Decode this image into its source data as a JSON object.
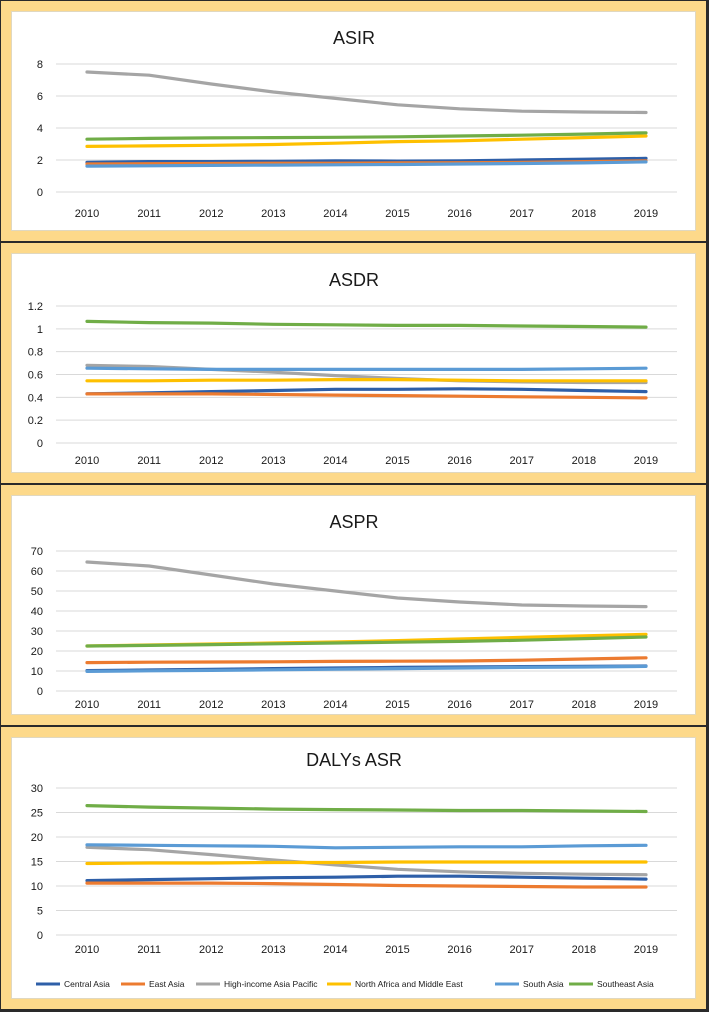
{
  "series_meta": [
    {
      "name": "Central Asia",
      "color": "#2e5fa8"
    },
    {
      "name": "East Asia",
      "color": "#ec7b30"
    },
    {
      "name": "High-income Asia Pacific",
      "color": "#a5a5a5"
    },
    {
      "name": "North Africa and Middle East",
      "color": "#fec000"
    },
    {
      "name": "South Asia",
      "color": "#5b9bd5"
    },
    {
      "name": "Southeast Asia",
      "color": "#70ad47"
    }
  ],
  "chart_data": [
    {
      "type": "line",
      "title": "ASIR",
      "x": [
        "2010",
        "2011",
        "2012",
        "2013",
        "2014",
        "2015",
        "2016",
        "2017",
        "2018",
        "2019"
      ],
      "ylim": [
        0,
        8
      ],
      "yticks": [
        "0",
        "2",
        "4",
        "6",
        "8"
      ],
      "grid": true,
      "legend": "none",
      "series": [
        {
          "name": "Central Asia",
          "values": [
            1.85,
            1.9,
            1.9,
            1.92,
            1.95,
            1.93,
            1.95,
            2.0,
            2.05,
            2.1
          ]
        },
        {
          "name": "East Asia",
          "values": [
            1.75,
            1.77,
            1.78,
            1.8,
            1.8,
            1.82,
            1.83,
            1.85,
            1.9,
            1.95
          ]
        },
        {
          "name": "High-income Asia Pacific",
          "values": [
            7.5,
            7.3,
            6.75,
            6.25,
            5.85,
            5.45,
            5.2,
            5.05,
            5.0,
            4.97
          ]
        },
        {
          "name": "North Africa and Middle East",
          "values": [
            2.85,
            2.88,
            2.92,
            2.97,
            3.05,
            3.15,
            3.2,
            3.3,
            3.4,
            3.5
          ]
        },
        {
          "name": "South Asia",
          "values": [
            1.62,
            1.64,
            1.66,
            1.68,
            1.7,
            1.72,
            1.75,
            1.78,
            1.82,
            1.88
          ]
        },
        {
          "name": "Southeast Asia",
          "values": [
            3.3,
            3.35,
            3.38,
            3.4,
            3.42,
            3.45,
            3.5,
            3.55,
            3.62,
            3.7
          ]
        }
      ]
    },
    {
      "type": "line",
      "title": "ASDR",
      "x": [
        "2010",
        "2011",
        "2012",
        "2013",
        "2014",
        "2015",
        "2016",
        "2017",
        "2018",
        "2019"
      ],
      "ylim": [
        0,
        1.2
      ],
      "yticks": [
        "0",
        "0.2",
        "0.4",
        "0.6",
        "0.8",
        "1",
        "1.2"
      ],
      "grid": true,
      "legend": "none",
      "series": [
        {
          "name": "Central Asia",
          "values": [
            0.43,
            0.44,
            0.45,
            0.46,
            0.47,
            0.47,
            0.475,
            0.47,
            0.46,
            0.45
          ]
        },
        {
          "name": "East Asia",
          "values": [
            0.43,
            0.43,
            0.43,
            0.425,
            0.42,
            0.415,
            0.41,
            0.405,
            0.4,
            0.395
          ]
        },
        {
          "name": "High-income Asia Pacific",
          "values": [
            0.68,
            0.67,
            0.645,
            0.62,
            0.59,
            0.565,
            0.545,
            0.535,
            0.53,
            0.53
          ]
        },
        {
          "name": "North Africa and Middle East",
          "values": [
            0.545,
            0.545,
            0.55,
            0.55,
            0.555,
            0.555,
            0.55,
            0.545,
            0.545,
            0.545
          ]
        },
        {
          "name": "South Asia",
          "values": [
            0.655,
            0.65,
            0.645,
            0.645,
            0.645,
            0.645,
            0.645,
            0.645,
            0.65,
            0.655
          ]
        },
        {
          "name": "Southeast Asia",
          "values": [
            1.065,
            1.055,
            1.05,
            1.04,
            1.035,
            1.03,
            1.03,
            1.025,
            1.02,
            1.015
          ]
        }
      ]
    },
    {
      "type": "line",
      "title": "ASPR",
      "x": [
        "2010",
        "2011",
        "2012",
        "2013",
        "2014",
        "2015",
        "2016",
        "2017",
        "2018",
        "2019"
      ],
      "ylim": [
        0,
        70
      ],
      "yticks": [
        "0",
        "10",
        "20",
        "30",
        "40",
        "50",
        "60",
        "70"
      ],
      "grid": true,
      "legend": "none",
      "series": [
        {
          "name": "Central Asia",
          "values": [
            10.2,
            10.5,
            10.8,
            11.2,
            11.5,
            11.8,
            12.0,
            12.2,
            12.3,
            12.5
          ]
        },
        {
          "name": "East Asia",
          "values": [
            14.2,
            14.4,
            14.5,
            14.6,
            14.8,
            14.9,
            15.0,
            15.4,
            16.0,
            16.6
          ]
        },
        {
          "name": "High-income Asia Pacific",
          "values": [
            64.5,
            62.5,
            58.0,
            53.5,
            50.0,
            46.5,
            44.5,
            43.0,
            42.5,
            42.2
          ]
        },
        {
          "name": "North Africa and Middle East",
          "values": [
            22.5,
            23.0,
            23.5,
            24.0,
            24.5,
            25.2,
            26.0,
            26.8,
            27.6,
            28.3
          ]
        },
        {
          "name": "South Asia",
          "values": [
            9.8,
            10.1,
            10.3,
            10.6,
            10.9,
            11.2,
            11.5,
            11.8,
            12.0,
            12.3
          ]
        },
        {
          "name": "Southeast Asia",
          "values": [
            22.5,
            22.8,
            23.2,
            23.6,
            24.0,
            24.4,
            24.8,
            25.4,
            26.2,
            27.0
          ]
        }
      ]
    },
    {
      "type": "line",
      "title": "DALYs ASR",
      "x": [
        "2010",
        "2011",
        "2012",
        "2013",
        "2014",
        "2015",
        "2016",
        "2017",
        "2018",
        "2019"
      ],
      "ylim": [
        0,
        30
      ],
      "yticks": [
        "0",
        "5",
        "10",
        "15",
        "20",
        "25",
        "30"
      ],
      "grid": true,
      "legend": "bottom",
      "series": [
        {
          "name": "Central Asia",
          "values": [
            11.1,
            11.3,
            11.5,
            11.7,
            11.8,
            12.0,
            12.0,
            11.8,
            11.6,
            11.4
          ]
        },
        {
          "name": "East Asia",
          "values": [
            10.6,
            10.6,
            10.6,
            10.5,
            10.3,
            10.1,
            10.0,
            9.9,
            9.8,
            9.8
          ]
        },
        {
          "name": "High-income Asia Pacific",
          "values": [
            17.9,
            17.4,
            16.4,
            15.3,
            14.3,
            13.4,
            12.9,
            12.6,
            12.4,
            12.3
          ]
        },
        {
          "name": "North Africa and Middle East",
          "values": [
            14.6,
            14.7,
            14.7,
            14.8,
            14.8,
            14.9,
            14.9,
            14.9,
            14.9,
            14.9
          ]
        },
        {
          "name": "South Asia",
          "values": [
            18.4,
            18.3,
            18.2,
            18.1,
            17.8,
            17.9,
            18.0,
            18.0,
            18.2,
            18.3
          ]
        },
        {
          "name": "Southeast Asia",
          "values": [
            26.4,
            26.1,
            25.9,
            25.7,
            25.6,
            25.5,
            25.4,
            25.4,
            25.3,
            25.2
          ]
        }
      ]
    }
  ]
}
